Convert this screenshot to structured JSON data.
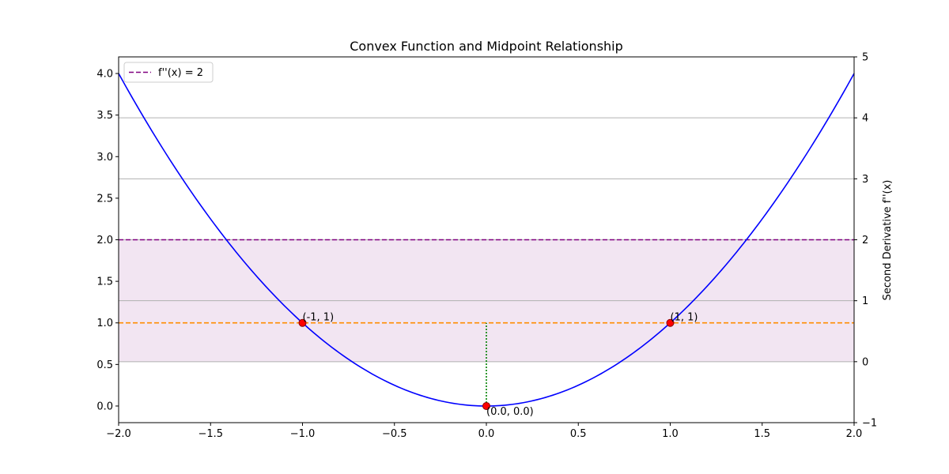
{
  "chart_data": {
    "type": "line",
    "title": "Convex Function and Midpoint Relationship",
    "xlabel": "",
    "ylabel": "",
    "y2label": "Second Derivative f''(x)",
    "xlim": [
      -2.0,
      2.0
    ],
    "ylim": [
      -0.2,
      4.2
    ],
    "y2lim": [
      -1,
      5
    ],
    "x_ticks": [
      "−2.0",
      "−1.5",
      "−1.0",
      "−0.5",
      "0.0",
      "0.5",
      "1.0",
      "1.5",
      "2.0"
    ],
    "y_ticks": [
      "0.0",
      "0.5",
      "1.0",
      "1.5",
      "2.0",
      "2.5",
      "3.0",
      "3.5",
      "4.0"
    ],
    "y2_ticks": [
      "−1",
      "0",
      "1",
      "2",
      "3",
      "4",
      "5"
    ],
    "x_tick_values": [
      -2.0,
      -1.5,
      -1.0,
      -0.5,
      0.0,
      0.5,
      1.0,
      1.5,
      2.0
    ],
    "y_tick_values": [
      0.0,
      0.5,
      1.0,
      1.5,
      2.0,
      2.5,
      3.0,
      3.5,
      4.0
    ],
    "y2_tick_values": [
      -1,
      0,
      1,
      2,
      3,
      4,
      5
    ],
    "grid": "right-axis horizontal",
    "series": [
      {
        "function": "x^2",
        "x_range": [
          -2.0,
          2.0
        ],
        "color": "#0000ff",
        "style": "solid"
      },
      {
        "name": "f''(x) = 2",
        "type": "hline",
        "y2": 2,
        "color": "#800080",
        "style": "dashed"
      },
      {
        "type": "hline",
        "y": 1.0,
        "color": "#ff8c00",
        "style": "dashed"
      },
      {
        "type": "vline",
        "x": 0.0,
        "y_range": [
          0.0,
          1.0
        ],
        "color": "#008000",
        "style": "dotted"
      }
    ],
    "shaded_region": {
      "y2_range": [
        0,
        2
      ],
      "color": "#800080",
      "alpha": 0.1
    },
    "points": [
      {
        "x": -1,
        "y": 1,
        "label": "(-1, 1)"
      },
      {
        "x": 1,
        "y": 1,
        "label": "(1, 1)"
      },
      {
        "x": 0.0,
        "y": 0.0,
        "label": "(0.0, 0.0)"
      }
    ],
    "legend": {
      "placement": "top-left",
      "entries": [
        "f''(x) = 2"
      ]
    }
  }
}
